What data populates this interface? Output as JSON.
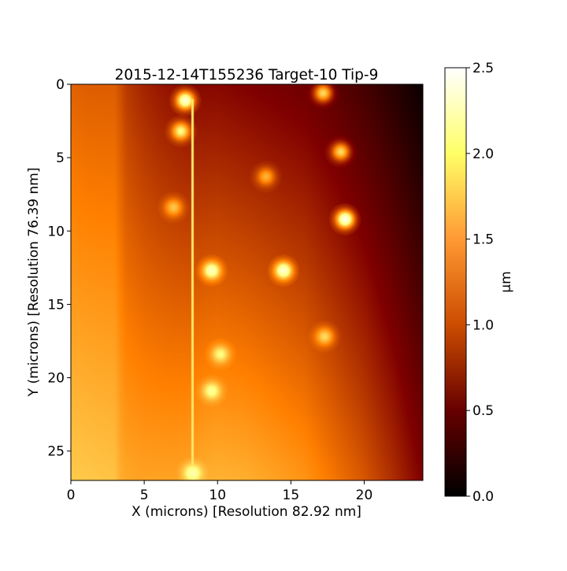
{
  "chart_data": {
    "type": "heatmap",
    "title": "2015-12-14T155236 Target-10 Tip-9",
    "xlabel": "X (microns) [Resolution 82.92 nm]",
    "ylabel": "Y (microns) [Resolution 76.39 nm]",
    "xlim": [
      0,
      24
    ],
    "ylim": [
      27,
      0
    ],
    "x_ticks": [
      0,
      5,
      10,
      15,
      20
    ],
    "y_ticks": [
      0,
      5,
      10,
      15,
      20,
      25
    ],
    "colormap": "afmhot",
    "colorbar": {
      "label": "µm",
      "min": 0.0,
      "max": 2.5,
      "ticks": [
        "0.0",
        "0.5",
        "1.0",
        "1.5",
        "2.0",
        "2.5"
      ]
    },
    "background_profile": {
      "x_microns": [
        0,
        1.5,
        3.0,
        3.4,
        3.8,
        5,
        6,
        7,
        8,
        9,
        10,
        12,
        14,
        16,
        18,
        20,
        22,
        24
      ],
      "height_top_um": [
        1.1,
        1.08,
        1.08,
        1.0,
        0.9,
        0.8,
        0.74,
        0.7,
        0.66,
        0.66,
        0.66,
        0.62,
        0.58,
        0.54,
        0.45,
        0.34,
        0.2,
        0.05
      ],
      "height_bottom_um": [
        1.62,
        1.6,
        1.58,
        1.48,
        1.44,
        1.42,
        1.42,
        1.42,
        1.44,
        1.48,
        1.5,
        1.48,
        1.42,
        1.35,
        1.2,
        1.05,
        0.85,
        0.62
      ]
    },
    "features": [
      {
        "x": 7.8,
        "y": 1.1,
        "height": 2.3
      },
      {
        "x": 17.2,
        "y": 0.6,
        "height": 1.7
      },
      {
        "x": 7.5,
        "y": 3.2,
        "height": 1.9
      },
      {
        "x": 18.4,
        "y": 4.6,
        "height": 1.7
      },
      {
        "x": 13.3,
        "y": 6.3,
        "height": 1.5
      },
      {
        "x": 7.0,
        "y": 8.4,
        "height": 1.6
      },
      {
        "x": 18.7,
        "y": 9.2,
        "height": 2.4
      },
      {
        "x": 9.6,
        "y": 12.7,
        "height": 2.2
      },
      {
        "x": 14.5,
        "y": 12.7,
        "height": 2.3
      },
      {
        "x": 17.3,
        "y": 17.2,
        "height": 1.7
      },
      {
        "x": 10.2,
        "y": 18.4,
        "height": 1.9
      },
      {
        "x": 9.6,
        "y": 20.9,
        "height": 2.0
      },
      {
        "x": 8.3,
        "y": 26.5,
        "height": 2.1
      }
    ],
    "scan_line": {
      "x": 8.3,
      "y_range": [
        1,
        27
      ],
      "height": 1.75
    }
  }
}
